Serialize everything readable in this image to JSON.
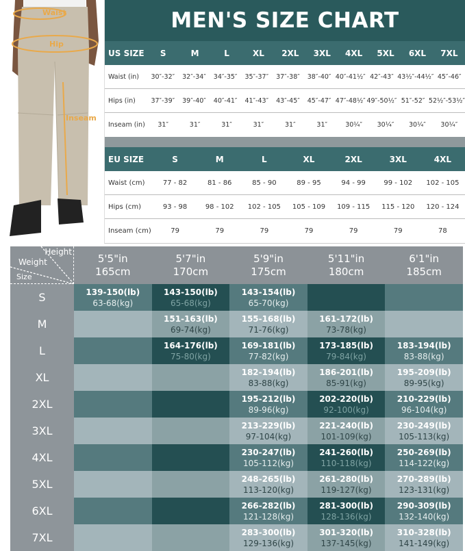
{
  "photo": {
    "labels": {
      "waist": "Waist",
      "hip": "Hip",
      "inseam": "Inseam"
    },
    "colors": {
      "pants": "#c8bfae",
      "measure": "#e9a94a"
    }
  },
  "title": "MEN'S SIZE CHART",
  "us": {
    "header": "US SIZE",
    "sizes": [
      "S",
      "M",
      "L",
      "XL",
      "2XL",
      "3XL",
      "4XL",
      "5XL",
      "6XL",
      "7XL"
    ],
    "rows": [
      {
        "label": "Waist (in)",
        "values": [
          "30″-32″",
          "32″-34″",
          "34″-35″",
          "35″-37″",
          "37″-38″",
          "38″-40″",
          "40″-41½″",
          "42″-43″",
          "43½″-44½″",
          "45″-46″"
        ]
      },
      {
        "label": "Hips (in)",
        "values": [
          "37″-39″",
          "39″-40″",
          "40″-41″",
          "41″-43″",
          "43″-45″",
          "45″-47″",
          "47″-48½″",
          "49″-50½″",
          "51″-52″",
          "52½″-53½″"
        ]
      },
      {
        "label": "Inseam (in)",
        "values": [
          "31″",
          "31″",
          "31″",
          "31″",
          "31″",
          "31″",
          "30¼″",
          "30¼″",
          "30¼″",
          "30¼″"
        ]
      }
    ]
  },
  "eu": {
    "header": "EU SIZE",
    "sizes": [
      "S",
      "M",
      "L",
      "XL",
      "2XL",
      "3XL",
      "4XL"
    ],
    "rows": [
      {
        "label": "Waist (cm)",
        "values": [
          "77 - 82",
          "81 - 86",
          "85 - 90",
          "89 - 95",
          "94 - 99",
          "99 - 102",
          "102 - 105"
        ]
      },
      {
        "label": "Hips (cm)",
        "values": [
          "93 - 98",
          "98 - 102",
          "102 - 105",
          "105 - 109",
          "109 - 115",
          "115 - 120",
          "120 - 124"
        ]
      },
      {
        "label": "Inseam (cm)",
        "values": [
          "79",
          "79",
          "79",
          "79",
          "79",
          "79",
          "78"
        ]
      }
    ]
  },
  "fit": {
    "corner": {
      "height": "Height",
      "weight": "Weight",
      "size": "Size"
    },
    "heights": [
      {
        "ft": "5'5\"in",
        "cm": "165cm"
      },
      {
        "ft": "5'7\"in",
        "cm": "170cm"
      },
      {
        "ft": "5'9\"in",
        "cm": "175cm"
      },
      {
        "ft": "5'11\"in",
        "cm": "180cm"
      },
      {
        "ft": "6'1\"in",
        "cm": "185cm"
      }
    ],
    "rows": [
      {
        "size": "S",
        "cells": [
          {
            "lb": "139-150(lb)",
            "kg": "63-68(kg)"
          },
          {
            "lb": "143-150(lb)",
            "kg": "65-68(kg)"
          },
          {
            "lb": "143-154(lb)",
            "kg": "65-70(kg)"
          },
          null,
          null
        ]
      },
      {
        "size": "M",
        "cells": [
          null,
          {
            "lb": "151-163(lb)",
            "kg": "69-74(kg)"
          },
          {
            "lb": "155-168(lb)",
            "kg": "71-76(kg)"
          },
          {
            "lb": "161-172(lb)",
            "kg": "73-78(kg)"
          },
          null
        ]
      },
      {
        "size": "L",
        "cells": [
          null,
          {
            "lb": "164-176(lb)",
            "kg": "75-80(kg)"
          },
          {
            "lb": "169-181(lb)",
            "kg": "77-82(kg)"
          },
          {
            "lb": "173-185(lb)",
            "kg": "79-84(kg)"
          },
          {
            "lb": "183-194(lb)",
            "kg": "83-88(kg)"
          }
        ]
      },
      {
        "size": "XL",
        "cells": [
          null,
          null,
          {
            "lb": "182-194(lb)",
            "kg": "83-88(kg)"
          },
          {
            "lb": "186-201(lb)",
            "kg": "85-91(kg)"
          },
          {
            "lb": "195-209(lb)",
            "kg": "89-95(kg)"
          }
        ]
      },
      {
        "size": "2XL",
        "cells": [
          null,
          null,
          {
            "lb": "195-212(lb)",
            "kg": "89-96(kg)"
          },
          {
            "lb": "202-220(lb)",
            "kg": "92-100(kg)"
          },
          {
            "lb": "210-229(lb)",
            "kg": "96-104(kg)"
          }
        ]
      },
      {
        "size": "3XL",
        "cells": [
          null,
          null,
          {
            "lb": "213-229(lb)",
            "kg": "97-104(kg)"
          },
          {
            "lb": "221-240(lb)",
            "kg": "101-109(kg)"
          },
          {
            "lb": "230-249(lb)",
            "kg": "105-113(kg)"
          }
        ]
      },
      {
        "size": "4XL",
        "cells": [
          null,
          null,
          {
            "lb": "230-247(lb)",
            "kg": "105-112(kg)"
          },
          {
            "lb": "241-260(lb)",
            "kg": "110-118(kg)"
          },
          {
            "lb": "250-269(lb)",
            "kg": "114-122(kg)"
          }
        ]
      },
      {
        "size": "5XL",
        "cells": [
          null,
          null,
          {
            "lb": "248-265(lb)",
            "kg": "113-120(kg)"
          },
          {
            "lb": "261-280(lb)",
            "kg": "119-127(kg)"
          },
          {
            "lb": "270-289(lb)",
            "kg": "123-131(kg)"
          }
        ]
      },
      {
        "size": "6XL",
        "cells": [
          null,
          null,
          {
            "lb": "266-282(lb)",
            "kg": "121-128(kg)"
          },
          {
            "lb": "281-300(lb)",
            "kg": "128-136(kg)"
          },
          {
            "lb": "290-309(lb)",
            "kg": "132-140(kg)"
          }
        ]
      },
      {
        "size": "7XL",
        "cells": [
          null,
          null,
          {
            "lb": "283-300(lb)",
            "kg": "129-136(kg)"
          },
          {
            "lb": "301-320(lb)",
            "kg": "137-145(kg)"
          },
          {
            "lb": "310-328(lb)",
            "kg": "141-149(kg)"
          }
        ]
      }
    ]
  }
}
